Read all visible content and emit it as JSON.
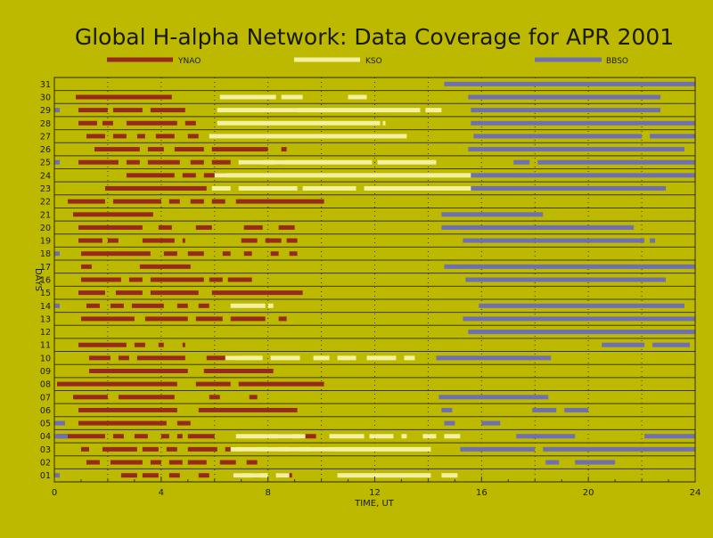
{
  "chart_data": {
    "type": "timeline",
    "title": "Global H-alpha Network: Data Coverage for APR 2001",
    "xlabel": "TIME, UT",
    "ylabel": "DAYS",
    "xlim": [
      0,
      24
    ],
    "xticks": [
      0,
      4,
      8,
      12,
      16,
      20,
      24
    ],
    "days": [
      "01",
      "02",
      "03",
      "04",
      "05",
      "06",
      "07",
      "08",
      "09",
      "10",
      "11",
      "12",
      "13",
      "14",
      "15",
      "16",
      "17",
      "18",
      "19",
      "20",
      "21",
      "22",
      "23",
      "24",
      "25",
      "26",
      "27",
      "28",
      "29",
      "30",
      "31"
    ],
    "legend_placement": "top",
    "grid": true,
    "colors": {
      "background": "#bdb900",
      "YNAO": "#972a1c",
      "KSO": "#f3f0a0",
      "BBSO": "#6f6fb6",
      "grid": "#3a3a00",
      "text": "#1a1a00"
    },
    "series": [
      {
        "name": "YNAO",
        "color": "#972a1c",
        "intervals": {
          "01": [
            [
              2.5,
              3.1
            ],
            [
              3.3,
              3.9
            ],
            [
              4.3,
              4.7
            ],
            [
              5.4,
              5.8
            ],
            [
              6.7,
              7.0
            ],
            [
              7.4,
              7.7
            ],
            [
              8.4,
              8.9
            ]
          ],
          "02": [
            [
              1.2,
              1.7
            ],
            [
              2.1,
              3.3
            ],
            [
              3.6,
              4.0
            ],
            [
              4.3,
              4.8
            ],
            [
              5.0,
              5.7
            ],
            [
              6.2,
              6.8
            ],
            [
              7.2,
              7.6
            ]
          ],
          "03": [
            [
              1.0,
              1.3
            ],
            [
              1.8,
              3.1
            ],
            [
              3.3,
              3.9
            ],
            [
              4.2,
              4.6
            ],
            [
              5.0,
              6.1
            ],
            [
              6.4,
              6.8
            ],
            [
              7.0,
              7.6
            ],
            [
              8.0,
              8.4
            ],
            [
              8.8,
              9.2
            ],
            [
              9.6,
              10.3
            ]
          ],
          "04": [
            [
              0.1,
              1.9
            ],
            [
              2.2,
              2.6
            ],
            [
              3.0,
              3.5
            ],
            [
              4.0,
              4.3
            ],
            [
              4.6,
              4.8
            ],
            [
              5.0,
              6.0
            ],
            [
              8.4,
              8.9
            ],
            [
              9.2,
              9.8
            ]
          ],
          "05": [
            [
              0.9,
              4.2
            ],
            [
              4.6,
              5.1
            ]
          ],
          "06": [
            [
              0.9,
              4.6
            ],
            [
              5.4,
              9.1
            ]
          ],
          "07": [
            [
              0.7,
              2.0
            ],
            [
              2.4,
              4.5
            ],
            [
              5.8,
              6.2
            ],
            [
              7.3,
              7.6
            ]
          ],
          "08": [
            [
              0.1,
              4.6
            ],
            [
              5.3,
              6.6
            ],
            [
              6.9,
              10.1
            ]
          ],
          "09": [
            [
              1.3,
              5.0
            ],
            [
              5.6,
              8.2
            ]
          ],
          "10": [
            [
              1.3,
              2.1
            ],
            [
              2.4,
              2.8
            ],
            [
              3.1,
              4.9
            ],
            [
              5.7,
              6.8
            ]
          ],
          "11": [
            [
              0.9,
              2.7
            ],
            [
              3.0,
              3.4
            ],
            [
              3.9,
              4.1
            ],
            [
              4.8,
              4.9
            ]
          ],
          "13": [
            [
              1.0,
              3.0
            ],
            [
              3.4,
              5.0
            ],
            [
              5.3,
              6.3
            ],
            [
              6.6,
              7.9
            ],
            [
              8.4,
              8.7
            ]
          ],
          "14": [
            [
              1.2,
              1.7
            ],
            [
              2.1,
              2.6
            ],
            [
              2.9,
              4.1
            ],
            [
              4.6,
              5.0
            ],
            [
              5.4,
              5.8
            ]
          ],
          "15": [
            [
              0.9,
              1.9
            ],
            [
              2.3,
              3.3
            ],
            [
              3.6,
              5.4
            ],
            [
              5.9,
              9.3
            ]
          ],
          "16": [
            [
              1.0,
              2.5
            ],
            [
              2.8,
              3.3
            ],
            [
              3.6,
              5.6
            ],
            [
              5.8,
              6.3
            ],
            [
              6.5,
              7.4
            ]
          ],
          "17": [
            [
              1.0,
              1.4
            ],
            [
              3.2,
              5.1
            ]
          ],
          "18": [
            [
              1.0,
              3.6
            ],
            [
              4.1,
              4.6
            ],
            [
              5.0,
              5.6
            ],
            [
              6.3,
              6.6
            ],
            [
              7.1,
              7.4
            ],
            [
              8.1,
              8.4
            ],
            [
              8.8,
              9.1
            ]
          ],
          "19": [
            [
              0.9,
              1.8
            ],
            [
              2.0,
              2.4
            ],
            [
              3.3,
              4.5
            ],
            [
              4.8,
              4.9
            ],
            [
              7.0,
              7.6
            ],
            [
              7.9,
              8.5
            ],
            [
              8.7,
              9.1
            ]
          ],
          "20": [
            [
              0.9,
              3.3
            ],
            [
              3.9,
              4.4
            ],
            [
              5.3,
              5.9
            ],
            [
              7.1,
              7.8
            ],
            [
              8.4,
              9.0
            ]
          ],
          "21": [
            [
              0.7,
              3.7
            ]
          ],
          "22": [
            [
              0.5,
              1.9
            ],
            [
              2.2,
              4.0
            ],
            [
              4.3,
              4.7
            ],
            [
              5.1,
              5.6
            ],
            [
              5.9,
              6.4
            ],
            [
              6.8,
              10.1
            ]
          ],
          "23": [
            [
              1.9,
              5.7
            ]
          ],
          "24": [
            [
              2.7,
              4.5
            ],
            [
              4.8,
              5.3
            ],
            [
              5.6,
              6.4
            ]
          ],
          "25": [
            [
              0.9,
              2.4
            ],
            [
              2.7,
              3.2
            ],
            [
              3.5,
              4.7
            ],
            [
              5.1,
              5.6
            ],
            [
              5.9,
              6.6
            ],
            [
              7.0,
              7.8
            ],
            [
              8.3,
              8.6
            ]
          ],
          "26": [
            [
              1.5,
              3.2
            ],
            [
              3.5,
              4.1
            ],
            [
              4.5,
              5.6
            ],
            [
              5.9,
              8.0
            ],
            [
              8.5,
              8.7
            ]
          ],
          "27": [
            [
              1.2,
              1.9
            ],
            [
              2.2,
              2.7
            ],
            [
              3.1,
              3.4
            ],
            [
              3.8,
              4.5
            ],
            [
              5.0,
              5.4
            ]
          ],
          "28": [
            [
              0.9,
              1.6
            ],
            [
              1.8,
              2.2
            ],
            [
              2.7,
              4.6
            ],
            [
              4.9,
              5.3
            ]
          ],
          "29": [
            [
              0.9,
              2.0
            ],
            [
              2.2,
              3.3
            ],
            [
              3.6,
              4.9
            ],
            [
              7.9,
              9.1
            ]
          ],
          "30": [
            [
              0.8,
              4.4
            ]
          ]
        }
      },
      {
        "name": "KSO",
        "color": "#f3f0a0",
        "intervals": {
          "01": [
            [
              6.7,
              8.0
            ],
            [
              8.3,
              8.8
            ],
            [
              10.6,
              14.1
            ],
            [
              14.5,
              15.1
            ]
          ],
          "03": [
            [
              6.6,
              14.1
            ]
          ],
          "04": [
            [
              6.8,
              9.4
            ],
            [
              10.3,
              11.6
            ],
            [
              11.8,
              12.7
            ],
            [
              13.0,
              13.2
            ],
            [
              13.8,
              14.3
            ],
            [
              14.6,
              15.2
            ]
          ],
          "10": [
            [
              6.4,
              7.8
            ],
            [
              8.1,
              9.2
            ],
            [
              9.7,
              10.3
            ],
            [
              10.6,
              11.3
            ],
            [
              11.7,
              12.8
            ],
            [
              13.1,
              13.5
            ]
          ],
          "14": [
            [
              6.6,
              7.9
            ],
            [
              8.0,
              8.2
            ]
          ],
          "23": [
            [
              5.9,
              6.6
            ],
            [
              6.9,
              9.1
            ],
            [
              9.3,
              11.3
            ],
            [
              11.6,
              16.7
            ]
          ],
          "24": [
            [
              6.0,
              15.6
            ]
          ],
          "25": [
            [
              6.9,
              11.9
            ],
            [
              12.1,
              14.3
            ]
          ],
          "27": [
            [
              5.8,
              13.2
            ]
          ],
          "28": [
            [
              6.1,
              12.2
            ],
            [
              12.3,
              12.4
            ]
          ],
          "29": [
            [
              6.1,
              13.7
            ],
            [
              13.9,
              14.5
            ]
          ],
          "30": [
            [
              6.2,
              8.3
            ],
            [
              8.5,
              9.3
            ],
            [
              11.0,
              11.7
            ]
          ]
        }
      },
      {
        "name": "BBSO",
        "color": "#6f6fb6",
        "intervals": {
          "01": [
            [
              0.0,
              0.2
            ]
          ],
          "02": [
            [
              18.4,
              18.9
            ],
            [
              19.5,
              21.0
            ]
          ],
          "03": [
            [
              15.2,
              18.0
            ],
            [
              18.3,
              24.0
            ]
          ],
          "04": [
            [
              0.0,
              0.5
            ],
            [
              17.3,
              19.5
            ],
            [
              22.1,
              24.0
            ]
          ],
          "05": [
            [
              0.0,
              0.4
            ],
            [
              14.6,
              15.0
            ],
            [
              16.0,
              16.7
            ]
          ],
          "06": [
            [
              14.5,
              14.9
            ],
            [
              17.9,
              18.8
            ],
            [
              19.1,
              20.0
            ]
          ],
          "07": [
            [
              14.4,
              18.5
            ]
          ],
          "10": [
            [
              14.3,
              18.6
            ]
          ],
          "11": [
            [
              20.5,
              22.1
            ],
            [
              22.4,
              23.8
            ]
          ],
          "12": [
            [
              15.5,
              24.0
            ]
          ],
          "13": [
            [
              15.3,
              24.0
            ]
          ],
          "14": [
            [
              0.0,
              0.2
            ],
            [
              15.9,
              23.6
            ]
          ],
          "16": [
            [
              15.4,
              22.9
            ]
          ],
          "17": [
            [
              14.6,
              24.0
            ]
          ],
          "18": [
            [
              0.0,
              0.2
            ]
          ],
          "19": [
            [
              15.3,
              22.1
            ],
            [
              22.3,
              22.5
            ]
          ],
          "20": [
            [
              14.5,
              21.7
            ]
          ],
          "21": [
            [
              14.5,
              18.3
            ]
          ],
          "23": [
            [
              15.6,
              22.9
            ]
          ],
          "24": [
            [
              15.6,
              24.0
            ]
          ],
          "25": [
            [
              0.0,
              0.2
            ],
            [
              17.2,
              17.8
            ],
            [
              18.1,
              24.0
            ]
          ],
          "26": [
            [
              15.5,
              23.6
            ]
          ],
          "27": [
            [
              15.7,
              22.0
            ],
            [
              22.3,
              24.0
            ]
          ],
          "28": [
            [
              15.6,
              24.0
            ]
          ],
          "29": [
            [
              0.0,
              0.2
            ],
            [
              15.6,
              22.7
            ]
          ],
          "30": [
            [
              15.5,
              22.7
            ]
          ],
          "31": [
            [
              14.6,
              24.0
            ]
          ]
        }
      }
    ]
  }
}
